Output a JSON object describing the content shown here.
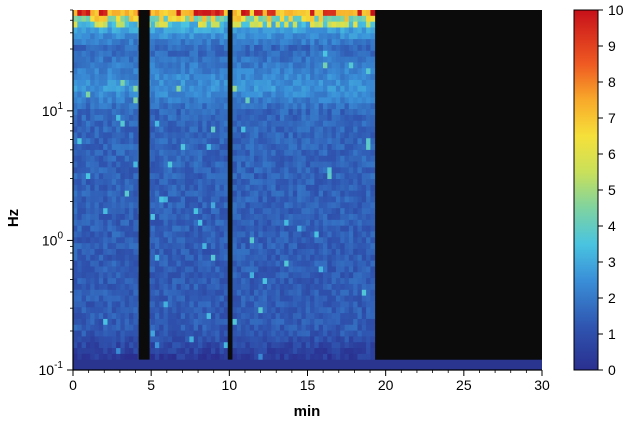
{
  "chart_data": {
    "type": "heatmap",
    "xlabel": "min",
    "ylabel": "Hz",
    "xlim": [
      0,
      30
    ],
    "ylim": [
      0.1,
      60
    ],
    "y_scale": "log",
    "x_ticks": [
      "0",
      "5",
      "10",
      "15",
      "20",
      "25",
      "30"
    ],
    "x_tick_values": [
      0,
      5,
      10,
      15,
      20,
      25,
      30
    ],
    "y_ticks": [
      {
        "base": "10",
        "exp": "-1",
        "value": 0.1
      },
      {
        "base": "10",
        "exp": "0",
        "value": 1
      },
      {
        "base": "10",
        "exp": "1",
        "value": 10
      }
    ],
    "colorbar": {
      "min": 0,
      "max": 10,
      "ticks": [
        "0",
        "1",
        "2",
        "3",
        "4",
        "5",
        "6",
        "7",
        "8",
        "9",
        "10"
      ],
      "colormap": "jet"
    },
    "no_data_color": "#0b0b0b",
    "recording_end_min": 19.3,
    "gaps_min": [
      [
        4.2,
        4.9
      ],
      [
        9.9,
        10.2
      ]
    ],
    "approx_level_profile": [
      {
        "hz": 0.12,
        "value": 0.3
      },
      {
        "hz": 0.2,
        "value": 1.3
      },
      {
        "hz": 1,
        "value": 1.4
      },
      {
        "hz": 10,
        "value": 1.6
      },
      {
        "hz": 15,
        "value": 2.6
      },
      {
        "hz": 30,
        "value": 1.6
      },
      {
        "hz": 50,
        "value": 3.5
      },
      {
        "hz": 60,
        "value": 8.5
      }
    ]
  }
}
